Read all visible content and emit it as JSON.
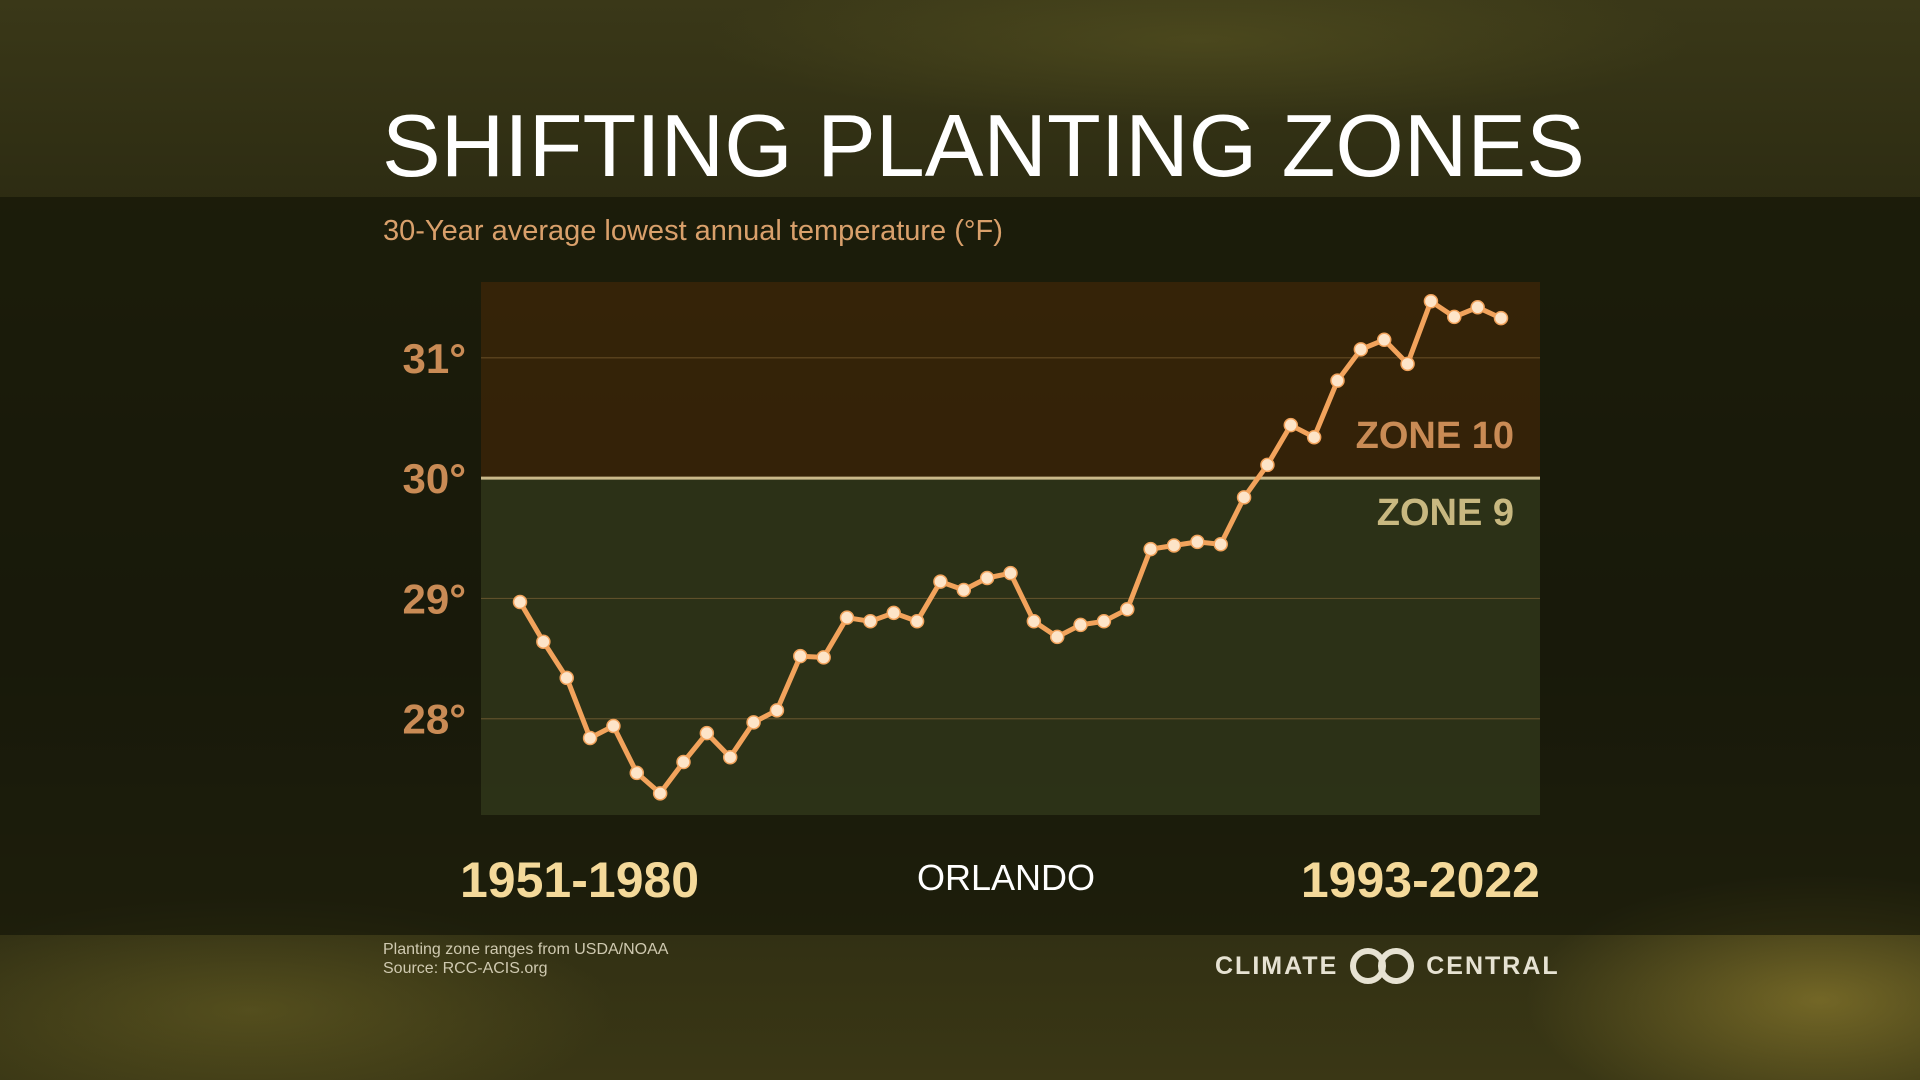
{
  "title": "SHIFTING PLANTING ZONES",
  "subtitle": "30-Year average lowest annual temperature (°F)",
  "footnotes": [
    "Planting zone ranges from USDA/NOAA",
    "Source: RCC-ACIS.org"
  ],
  "logo": {
    "left_word": "CLIMATE",
    "right_word": "CENTRAL"
  },
  "colors": {
    "line": "#f2a35c",
    "marker": "#fde4c8",
    "zone10_fill": "#3a2408",
    "zone9_fill": "#333a1c",
    "threshold": "#c9b98a",
    "zone10_text": "#c98b55",
    "zone9_text": "#c8b880"
  },
  "chart_data": {
    "type": "line",
    "title": "SHIFTING PLANTING ZONES",
    "subtitle": "30-Year average lowest annual temperature (°F)",
    "location": "ORLANDO",
    "x_start_label": "1951-1980",
    "x_end_label": "1993-2022",
    "ylim": [
      27.2,
      31.63
    ],
    "yticks": [
      28,
      29,
      30,
      31
    ],
    "ytick_labels": [
      "28°",
      "29°",
      "30°",
      "31°"
    ],
    "grid": true,
    "zones": [
      {
        "label": "ZONE 10",
        "from": 30,
        "to": 31.63
      },
      {
        "label": "ZONE 9",
        "from": 27.2,
        "to": 30
      }
    ],
    "threshold": 30,
    "values": [
      28.97,
      28.64,
      28.34,
      27.84,
      27.94,
      27.55,
      27.38,
      27.64,
      27.88,
      27.68,
      27.97,
      28.07,
      28.52,
      28.51,
      28.84,
      28.81,
      28.88,
      28.81,
      29.14,
      29.07,
      29.17,
      29.21,
      28.81,
      28.68,
      28.78,
      28.81,
      28.91,
      29.41,
      29.44,
      29.47,
      29.45,
      29.84,
      30.11,
      30.44,
      30.34,
      30.81,
      31.07,
      31.15,
      30.95,
      31.47,
      31.34,
      31.42,
      31.33
    ]
  }
}
